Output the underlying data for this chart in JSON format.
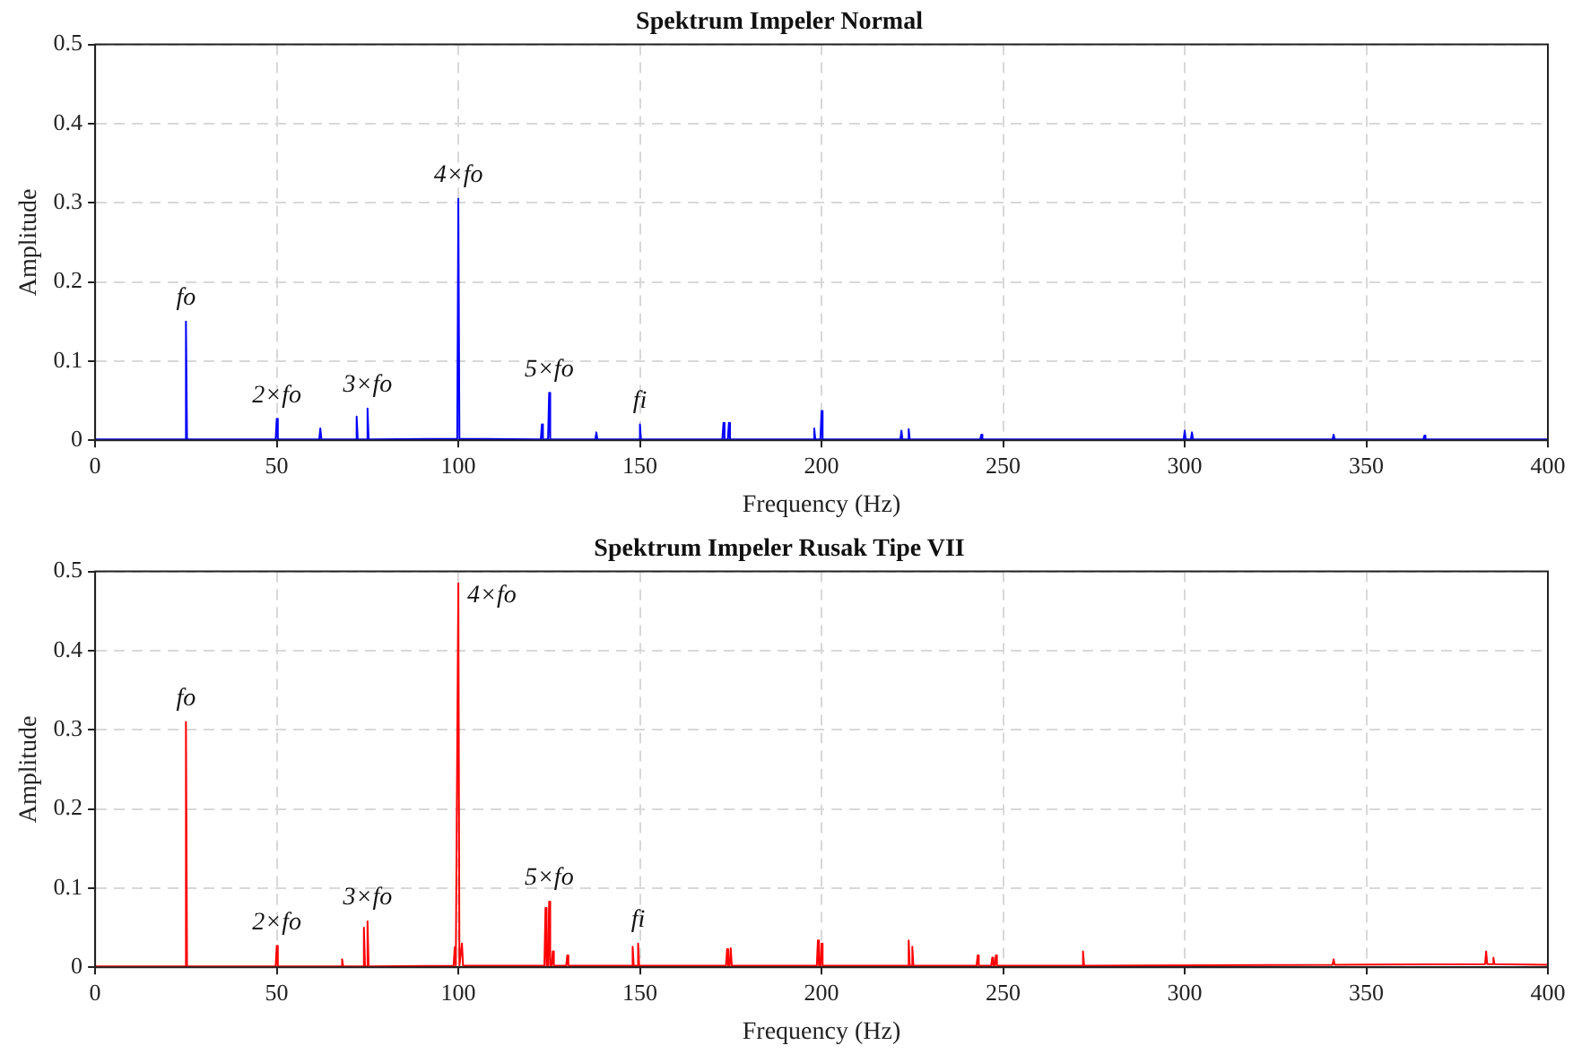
{
  "chart_data": [
    {
      "type": "line",
      "title": "Spektrum Impeler Normal",
      "xlabel": "Frequency (Hz)",
      "ylabel": "Amplitude",
      "xlim": [
        0,
        400
      ],
      "ylim": [
        0,
        0.5
      ],
      "xticks": [
        0,
        50,
        100,
        150,
        200,
        250,
        300,
        350,
        400
      ],
      "yticks": [
        0,
        0.1,
        0.2,
        0.3,
        0.4,
        0.5
      ],
      "grid": true,
      "legend": false,
      "marker": "none",
      "x": [
        0,
        24.7,
        25,
        25.3,
        49.7,
        50,
        50.3,
        61.7,
        62,
        62.3,
        71.7,
        72,
        72.3,
        74.7,
        75,
        75.3,
        99.7,
        100,
        100.3,
        122.7,
        123,
        123.3,
        124.7,
        125,
        125.3,
        137.7,
        138,
        138.3,
        149.7,
        150,
        150.3,
        172.7,
        173,
        173.3,
        174.2,
        174.5,
        174.8,
        197.7,
        198,
        198.3,
        199.7,
        200,
        200.3,
        221.7,
        222,
        222.3,
        223.7,
        224,
        224.3,
        243.7,
        244,
        244.3,
        299.7,
        300,
        300.3,
        301.7,
        302,
        302.3,
        340.7,
        341,
        341.3,
        365.7,
        366,
        366.3,
        400
      ],
      "series": [
        {
          "color": "#0000ff",
          "values": [
            0.001,
            0.001,
            0.15,
            0.001,
            0.001,
            0.027,
            0.001,
            0.001,
            0.015,
            0.001,
            0.001,
            0.03,
            0.001,
            0.001,
            0.04,
            0.001,
            0.002,
            0.305,
            0.002,
            0.001,
            0.02,
            0.001,
            0.001,
            0.06,
            0.001,
            0.001,
            0.01,
            0.001,
            0.001,
            0.02,
            0.001,
            0.001,
            0.022,
            0.001,
            0.001,
            0.022,
            0.001,
            0.001,
            0.015,
            0.001,
            0.001,
            0.037,
            0.001,
            0.001,
            0.012,
            0.001,
            0.001,
            0.014,
            0.001,
            0.001,
            0.007,
            0.001,
            0.001,
            0.012,
            0.001,
            0.001,
            0.01,
            0.001,
            0.001,
            0.007,
            0.001,
            0.001,
            0.006,
            0.001,
            0.001
          ]
        }
      ],
      "annotations": [
        {
          "text": "fo",
          "x": 25,
          "y": 0.15
        },
        {
          "text": "2×fo",
          "x": 50,
          "y": 0.027
        },
        {
          "text": "3×fo",
          "x": 75,
          "y": 0.04
        },
        {
          "text": "4×fo",
          "x": 100,
          "y": 0.305
        },
        {
          "text": "5×fo",
          "x": 125,
          "y": 0.06
        },
        {
          "text": "fi",
          "x": 150,
          "y": 0.02
        }
      ]
    },
    {
      "type": "line",
      "title": "Spektrum Impeler Rusak Tipe VII",
      "xlabel": "Frequency (Hz)",
      "ylabel": "Amplitude",
      "xlim": [
        0,
        400
      ],
      "ylim": [
        0,
        0.5
      ],
      "xticks": [
        0,
        50,
        100,
        150,
        200,
        250,
        300,
        350,
        400
      ],
      "yticks": [
        0,
        0.1,
        0.2,
        0.3,
        0.4,
        0.5
      ],
      "grid": true,
      "legend": false,
      "marker": "none",
      "x": [
        0,
        24.7,
        25,
        25.3,
        49.7,
        50,
        50.3,
        67.7,
        68,
        68.3,
        73.7,
        74,
        74.3,
        74.7,
        75,
        75.3,
        98.7,
        99,
        99.3,
        99.7,
        100,
        100.3,
        100.7,
        101,
        101.3,
        123.7,
        124,
        124.3,
        124.7,
        125,
        125.3,
        125.7,
        126,
        126.3,
        129.7,
        130,
        130.3,
        147.7,
        148,
        148.3,
        149.2,
        149.5,
        149.8,
        173.7,
        174,
        174.3,
        174.7,
        175,
        175.3,
        198.7,
        199,
        199.3,
        199.7,
        200,
        200.3,
        223.7,
        224,
        224.3,
        224.7,
        225,
        225.3,
        242.7,
        243,
        243.3,
        246.7,
        247,
        247.3,
        247.7,
        248,
        248.3,
        271.7,
        272,
        272.3,
        340.7,
        341,
        341.3,
        382.7,
        383,
        383.3,
        384.7,
        385,
        385.3,
        400
      ],
      "series": [
        {
          "color": "#ff0000",
          "values": [
            0.001,
            0.001,
            0.31,
            0.001,
            0.001,
            0.027,
            0.001,
            0.001,
            0.01,
            0.001,
            0.001,
            0.05,
            0.001,
            0.001,
            0.058,
            0.001,
            0.002,
            0.025,
            0.002,
            0.002,
            0.485,
            0.002,
            0.002,
            0.03,
            0.002,
            0.002,
            0.075,
            0.002,
            0.002,
            0.083,
            0.002,
            0.002,
            0.02,
            0.002,
            0.002,
            0.015,
            0.002,
            0.002,
            0.026,
            0.002,
            0.002,
            0.03,
            0.002,
            0.002,
            0.023,
            0.002,
            0.002,
            0.024,
            0.002,
            0.002,
            0.034,
            0.002,
            0.002,
            0.03,
            0.002,
            0.002,
            0.034,
            0.002,
            0.002,
            0.026,
            0.002,
            0.002,
            0.015,
            0.002,
            0.002,
            0.012,
            0.002,
            0.002,
            0.015,
            0.002,
            0.002,
            0.02,
            0.002,
            0.003,
            0.01,
            0.003,
            0.004,
            0.02,
            0.004,
            0.004,
            0.012,
            0.004,
            0.003
          ]
        }
      ],
      "annotations": [
        {
          "text": "fo",
          "x": 25,
          "y": 0.31
        },
        {
          "text": "2×fo",
          "x": 50,
          "y": 0.027
        },
        {
          "text": "3×fo",
          "x": 75,
          "y": 0.058
        },
        {
          "text": "4×fo",
          "x": 100,
          "y": 0.485
        },
        {
          "text": "5×fo",
          "x": 125,
          "y": 0.083
        },
        {
          "text": "fi",
          "x": 149.5,
          "y": 0.03
        }
      ]
    }
  ]
}
